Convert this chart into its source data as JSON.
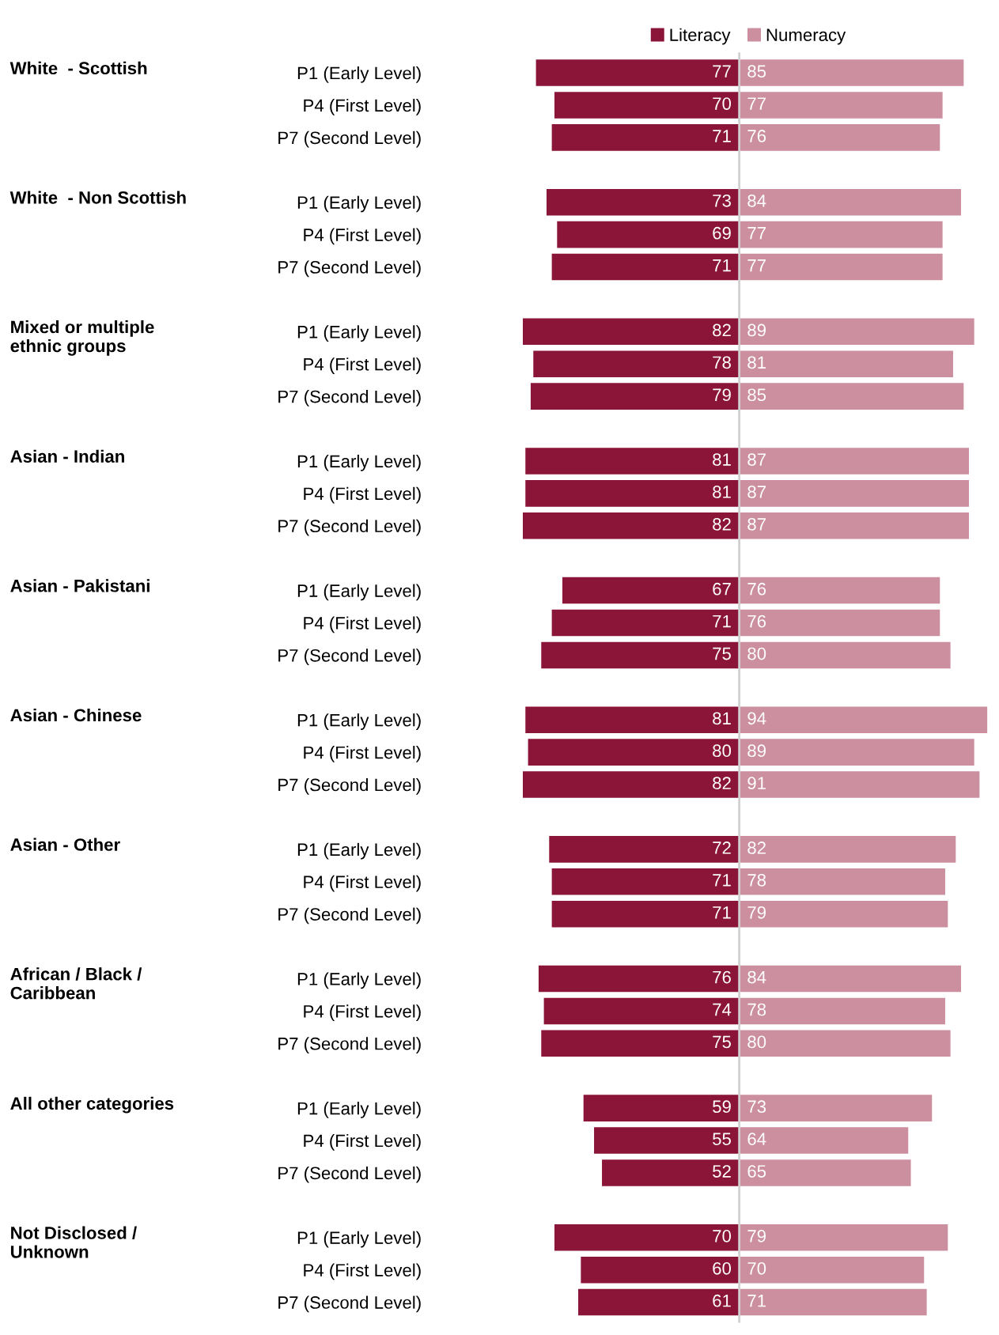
{
  "chart_data": [
    {
      "type": "bar",
      "orientation": "horizontal",
      "data_labels": true,
      "legend": "top right",
      "grid": false,
      "tick_labels": "y",
      "xlim": [
        82,
        0
      ],
      "categories": [
        "P1 (Early Level)",
        "P4 (First Level)",
        "P7 (Second Level)",
        "P1 (Early Level)",
        "P4 (First Level)",
        "P7 (Second Level)",
        "P1 (Early Level)",
        "P4 (First Level)",
        "P7 (Second Level)",
        "P1 (Early Level)",
        "P4 (First Level)",
        "P7 (Second Level)",
        "P1 (Early Level)",
        "P4 (First Level)",
        "P7 (Second Level)",
        "P1 (Early Level)",
        "P4 (First Level)",
        "P7 (Second Level)",
        "P1 (Early Level)",
        "P4 (First Level)",
        "P7 (Second Level)",
        "P1 (Early Level)",
        "P4 (First Level)",
        "P7 (Second Level)",
        "P1 (Early Level)",
        "P4 (First Level)",
        "P7 (Second Level)",
        "P1 (Early Level)",
        "P4 (First Level)",
        "P7 (Second Level)"
      ],
      "annotations": [
        "White  - Scottish",
        "White  - Non Scottish",
        "Mixed or multiple\nethnic groups",
        "Asian - Indian",
        "Asian - Pakistani",
        "Asian - Chinese",
        "Asian - Other",
        "African / Black /\nCaribbean",
        "All other categories",
        "Not Disclosed /\nUnknown"
      ],
      "series": [
        {
          "name": "Literacy",
          "color": "#8b1538",
          "values": [
            77,
            70,
            71,
            73,
            69,
            71,
            82,
            78,
            79,
            81,
            81,
            82,
            67,
            71,
            75,
            81,
            80,
            82,
            72,
            71,
            71,
            76,
            74,
            75,
            59,
            55,
            52,
            70,
            60,
            61
          ]
        }
      ]
    },
    {
      "type": "bar",
      "orientation": "horizontal",
      "data_labels": true,
      "legend": "top left",
      "grid": false,
      "tick_labels": false,
      "xlim": [
        0,
        94
      ],
      "categories": [
        null,
        null,
        null,
        null,
        null,
        null,
        null,
        null,
        null,
        null,
        null,
        null,
        null,
        null,
        null,
        null,
        null,
        null,
        null,
        null,
        null,
        null,
        null,
        null,
        null,
        null,
        null,
        null,
        null,
        null
      ],
      "ref_lines": [
        {
          "axis": "x",
          "value": 0,
          "color": "#d0d0d0"
        }
      ],
      "series": [
        {
          "name": "Numeracy",
          "color": "#cc8fa0",
          "values": [
            85,
            77,
            76,
            84,
            77,
            77,
            89,
            81,
            85,
            87,
            87,
            87,
            76,
            76,
            80,
            94,
            89,
            91,
            82,
            78,
            79,
            84,
            78,
            80,
            73,
            64,
            65,
            79,
            70,
            71
          ]
        }
      ]
    }
  ]
}
